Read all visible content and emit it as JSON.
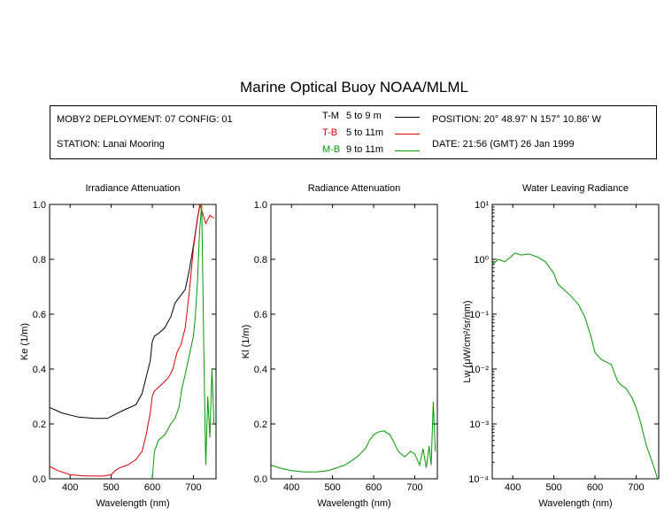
{
  "title": "Marine Optical Buoy NOAA/MLML",
  "info": {
    "deployment": "MOBY2 DEPLOYMENT: 07 CONFIG: 01",
    "station": "STATION: Lanai Mooring",
    "position": "POSITION: 20° 48.97' N   157° 10.86' W",
    "date": "DATE: 21:56 (GMT) 26 Jan 1999",
    "legend": [
      {
        "code": "T-M",
        "depth": "5 to 9  m",
        "color": "#000000"
      },
      {
        "code": "T-B",
        "depth": "5 to 11m",
        "color": "#dd0000"
      },
      {
        "code": "M-B",
        "depth": "9 to 11m",
        "color": "#009900"
      }
    ]
  },
  "colors": {
    "tm": "#000000",
    "tb": "#dd0000",
    "mb": "#009900"
  },
  "chart_data": [
    {
      "type": "line",
      "title": "Irradiance Attenuation",
      "xlabel": "Wavelength (nm)",
      "ylabel": "Ke  (1/m)",
      "xlim": [
        350,
        755
      ],
      "ylim": [
        0,
        1
      ],
      "xticks": [
        400,
        500,
        600,
        700
      ],
      "yticks": [
        0.0,
        0.2,
        0.4,
        0.6,
        0.8,
        1.0
      ],
      "series": [
        {
          "name": "T-M",
          "color": "#000000",
          "x": [
            350,
            380,
            420,
            460,
            490,
            510,
            530,
            560,
            575,
            585,
            595,
            600,
            605,
            615,
            630,
            645,
            655,
            665,
            680,
            690,
            700,
            710,
            716
          ],
          "y": [
            0.26,
            0.24,
            0.225,
            0.22,
            0.22,
            0.235,
            0.25,
            0.27,
            0.31,
            0.37,
            0.43,
            0.5,
            0.52,
            0.53,
            0.55,
            0.59,
            0.64,
            0.66,
            0.69,
            0.76,
            0.85,
            0.95,
            1.0
          ]
        },
        {
          "name": "T-B",
          "color": "#dd0000",
          "x": [
            350,
            370,
            400,
            440,
            480,
            500,
            510,
            520,
            540,
            560,
            575,
            585,
            595,
            600,
            605,
            620,
            640,
            650,
            660,
            670,
            680,
            690,
            700,
            710,
            716,
            722,
            730,
            740,
            750
          ],
          "y": [
            0.045,
            0.03,
            0.015,
            0.01,
            0.01,
            0.015,
            0.03,
            0.04,
            0.05,
            0.07,
            0.1,
            0.16,
            0.24,
            0.3,
            0.32,
            0.34,
            0.37,
            0.4,
            0.46,
            0.49,
            0.55,
            0.68,
            0.84,
            0.95,
            1.0,
            0.97,
            0.93,
            0.96,
            0.95
          ]
        },
        {
          "name": "M-B",
          "color": "#009900",
          "x": [
            600,
            605,
            615,
            630,
            645,
            655,
            665,
            672,
            680,
            690,
            700,
            705,
            710,
            715,
            720,
            725,
            730,
            735,
            740,
            745,
            750
          ],
          "y": [
            0.0,
            0.1,
            0.14,
            0.16,
            0.2,
            0.22,
            0.26,
            0.33,
            0.38,
            0.45,
            0.52,
            0.6,
            0.72,
            0.9,
            1.0,
            0.5,
            0.05,
            0.3,
            0.15,
            0.4,
            0.2
          ]
        }
      ]
    },
    {
      "type": "line",
      "title": "Radiance Attenuation",
      "xlabel": "Wavelength (nm)",
      "ylabel": "Kl  (1/m)",
      "xlim": [
        350,
        755
      ],
      "ylim": [
        0,
        1
      ],
      "xticks": [
        400,
        500,
        600,
        700
      ],
      "yticks": [
        0.0,
        0.2,
        0.4,
        0.6,
        0.8,
        1.0
      ],
      "series": [
        {
          "name": "M-B",
          "color": "#009900",
          "x": [
            350,
            370,
            400,
            430,
            460,
            490,
            510,
            530,
            560,
            580,
            590,
            600,
            610,
            625,
            640,
            650,
            660,
            675,
            690,
            700,
            712,
            720,
            728,
            735,
            740,
            745,
            750
          ],
          "y": [
            0.05,
            0.04,
            0.03,
            0.025,
            0.025,
            0.03,
            0.04,
            0.05,
            0.08,
            0.11,
            0.14,
            0.16,
            0.17,
            0.175,
            0.16,
            0.13,
            0.1,
            0.08,
            0.1,
            0.09,
            0.05,
            0.11,
            0.04,
            0.12,
            0.05,
            0.28,
            0.1
          ]
        }
      ]
    },
    {
      "type": "line",
      "title": "Water Leaving Radiance",
      "xlabel": "Wavelength (nm)",
      "ylabel": "Lw  (μW/cm²/sr/nm)",
      "yscale": "log",
      "xlim": [
        350,
        755
      ],
      "ylim": [
        0.0001,
        10
      ],
      "xticks": [
        400,
        500,
        600,
        700
      ],
      "yticks": [
        "10⁻⁴",
        "10⁻³",
        "10⁻²",
        "10⁻¹",
        "10⁰",
        "10¹"
      ],
      "series": [
        {
          "name": "M-B",
          "color": "#009900",
          "x": [
            350,
            365,
            380,
            395,
            405,
            420,
            440,
            460,
            480,
            500,
            510,
            520,
            540,
            560,
            575,
            590,
            600,
            615,
            640,
            655,
            665,
            675,
            690,
            700,
            712,
            725,
            735,
            745,
            752
          ],
          "y": [
            0.8,
            1.0,
            0.9,
            1.1,
            1.3,
            1.2,
            1.25,
            1.1,
            0.9,
            0.55,
            0.35,
            0.3,
            0.22,
            0.15,
            0.09,
            0.04,
            0.02,
            0.015,
            0.012,
            0.006,
            0.005,
            0.0045,
            0.003,
            0.002,
            0.001,
            0.0004,
            0.00025,
            0.00015,
            0.0001
          ]
        }
      ]
    }
  ]
}
